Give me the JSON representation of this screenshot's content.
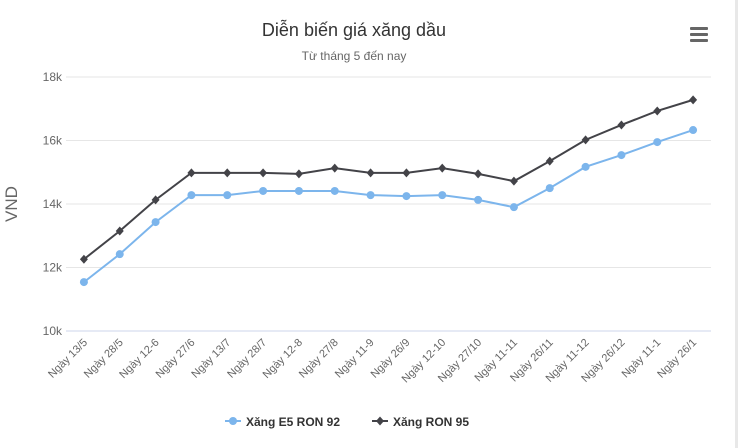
{
  "chart_data": {
    "type": "line",
    "title": "Diễn biến giá xăng dầu",
    "subtitle": "Từ tháng 5 đến nay",
    "ylabel": "VND",
    "xlabel": "",
    "ylim": [
      10000,
      18000
    ],
    "yticks": [
      10000,
      12000,
      14000,
      16000,
      18000
    ],
    "ytick_labels": [
      "10k",
      "12k",
      "14k",
      "16k",
      "18k"
    ],
    "grid": true,
    "legend": "bottom-center",
    "categories": [
      "Ngày 13/5",
      "Ngày 28/5",
      "Ngày 12-6",
      "Ngày 27/6",
      "Ngày 13/7",
      "Ngày 28/7",
      "Ngày 12-8",
      "Ngày 27/8",
      "Ngày 11-9",
      "Ngày 26/9",
      "Ngày 12-10",
      "Ngày 27/10",
      "Ngày 11-11",
      "Ngày 26/11",
      "Ngày 11-12",
      "Ngày 26/12",
      "Ngày 11-1",
      "Ngày 26/1"
    ],
    "series": [
      {
        "name": "Xăng E5 RON 92",
        "color": "#7cb5ec",
        "marker": "circle",
        "values": [
          11540,
          12420,
          13430,
          14280,
          14280,
          14410,
          14410,
          14410,
          14280,
          14250,
          14280,
          14130,
          13900,
          14500,
          15170,
          15540,
          15950,
          16330
        ]
      },
      {
        "name": "Xăng RON 95",
        "color": "#434348",
        "marker": "diamond",
        "values": [
          12260,
          13150,
          14130,
          14980,
          14980,
          14980,
          14950,
          15130,
          14980,
          14980,
          15130,
          14950,
          14720,
          15350,
          16020,
          16490,
          16930,
          17280
        ]
      }
    ]
  },
  "menu_icon": "hamburger-menu-icon"
}
